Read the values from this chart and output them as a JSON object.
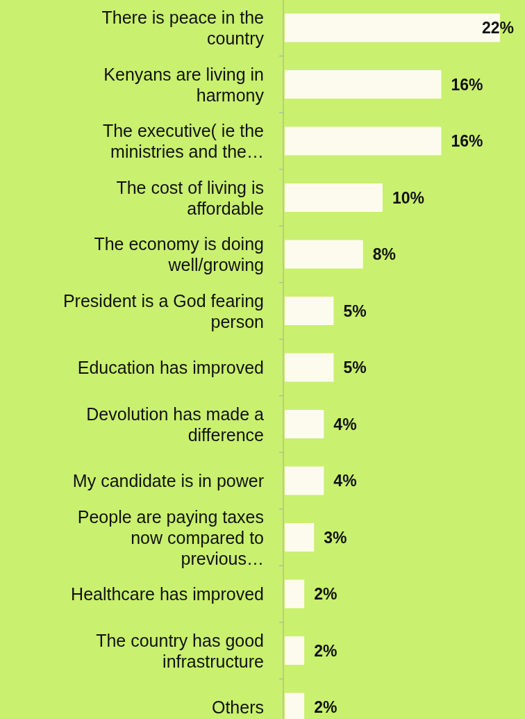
{
  "chart_data": {
    "type": "bar",
    "orientation": "horizontal",
    "data_labels": true,
    "categories": [
      "There is peace in the country",
      "Kenyans are living in harmony",
      "The executive( ie the ministries and the…",
      "The cost of living is affordable",
      "The economy is doing well/growing",
      "President is a God fearing person",
      "Education has improved",
      "Devolution has made a difference",
      "My candidate is in power",
      "People are paying taxes now compared to previous…",
      "Healthcare has improved",
      "The country has good infrastructure",
      "Others"
    ],
    "values": [
      22,
      16,
      16,
      10,
      8,
      5,
      5,
      4,
      4,
      3,
      2,
      2,
      2
    ],
    "value_labels": [
      "22%",
      "16%",
      "16%",
      "10%",
      "8%",
      "5%",
      "5%",
      "4%",
      "4%",
      "3%",
      "2%",
      "2%",
      "2%"
    ],
    "color": "#fdfbee"
  }
}
